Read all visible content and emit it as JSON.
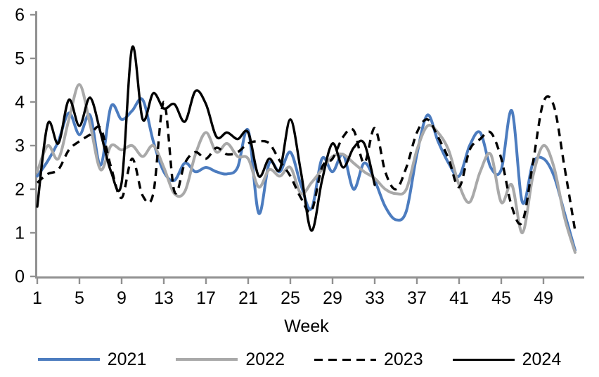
{
  "chart_data": {
    "type": "line",
    "xlabel": "Week",
    "ylabel": "",
    "x_ticks": [
      1,
      5,
      9,
      13,
      17,
      21,
      25,
      29,
      33,
      37,
      41,
      45,
      49
    ],
    "y_ticks": [
      0,
      1,
      2,
      3,
      4,
      5,
      6
    ],
    "xlim": [
      1,
      52
    ],
    "ylim": [
      0,
      6
    ],
    "grid": false,
    "smoothed": true,
    "legend_position": "bottom",
    "axis_color": "#919191",
    "series": [
      {
        "name": "2021",
        "color": "#4C7CBF",
        "style": "solid",
        "width": 4,
        "x_start": 1,
        "values": [
          2.3,
          2.65,
          3.1,
          3.75,
          3.25,
          3.7,
          2.55,
          3.9,
          3.6,
          3.8,
          4.05,
          3.1,
          2.4,
          2.2,
          2.6,
          2.4,
          2.5,
          2.4,
          2.35,
          2.5,
          3.35,
          1.45,
          2.6,
          2.4,
          2.85,
          2.1,
          1.55,
          2.7,
          2.4,
          2.8,
          2.0,
          2.6,
          2.2,
          1.6,
          1.3,
          1.5,
          2.8,
          3.7,
          3.1,
          2.6,
          2.3,
          3.0,
          3.3,
          2.5,
          2.45,
          3.8,
          1.7,
          2.6,
          2.7,
          2.3,
          1.45,
          0.6
        ]
      },
      {
        "name": "2022",
        "color": "#A9A9A9",
        "style": "solid",
        "width": 4,
        "x_start": 1,
        "values": [
          2.4,
          3.0,
          2.7,
          3.6,
          4.4,
          3.5,
          2.45,
          3.0,
          2.9,
          3.0,
          2.75,
          3.0,
          2.5,
          1.9,
          1.95,
          2.8,
          3.3,
          2.85,
          3.05,
          2.75,
          2.7,
          2.05,
          2.45,
          2.3,
          2.5,
          1.9,
          2.15,
          2.45,
          2.75,
          2.8,
          2.6,
          2.4,
          2.25,
          2.0,
          1.9,
          2.0,
          2.9,
          3.45,
          3.3,
          2.9,
          2.1,
          1.7,
          2.4,
          2.8,
          1.7,
          2.1,
          1.0,
          2.3,
          3.0,
          2.5,
          1.35,
          0.55
        ]
      },
      {
        "name": "2023",
        "color": "#000000",
        "style": "dashed",
        "width": 3.4,
        "x_start": 1,
        "values": [
          2.15,
          2.35,
          2.45,
          2.9,
          3.1,
          3.25,
          3.4,
          2.5,
          1.8,
          2.7,
          1.85,
          1.9,
          4.0,
          1.95,
          2.6,
          2.85,
          2.7,
          2.95,
          2.8,
          2.85,
          3.05,
          3.1,
          3.05,
          2.65,
          2.3,
          1.8,
          1.5,
          2.5,
          2.7,
          3.2,
          3.35,
          2.6,
          3.4,
          2.4,
          2.0,
          2.5,
          3.3,
          3.6,
          3.2,
          2.7,
          2.05,
          2.9,
          3.15,
          3.3,
          2.7,
          1.6,
          1.25,
          2.6,
          4.0,
          3.9,
          2.5,
          1.05
        ]
      },
      {
        "name": "2024",
        "color": "#000000",
        "style": "solid",
        "width": 3.4,
        "x_start": 1,
        "values": [
          1.6,
          3.5,
          3.05,
          4.05,
          3.45,
          4.1,
          3.3,
          2.4,
          2.15,
          5.25,
          3.6,
          4.2,
          3.85,
          3.95,
          3.55,
          4.25,
          3.95,
          3.2,
          3.3,
          3.15,
          3.3,
          2.3,
          2.7,
          2.45,
          3.6,
          2.4,
          1.05,
          2.2,
          3.05,
          2.5,
          2.95,
          3.05,
          2.1
        ]
      }
    ]
  }
}
